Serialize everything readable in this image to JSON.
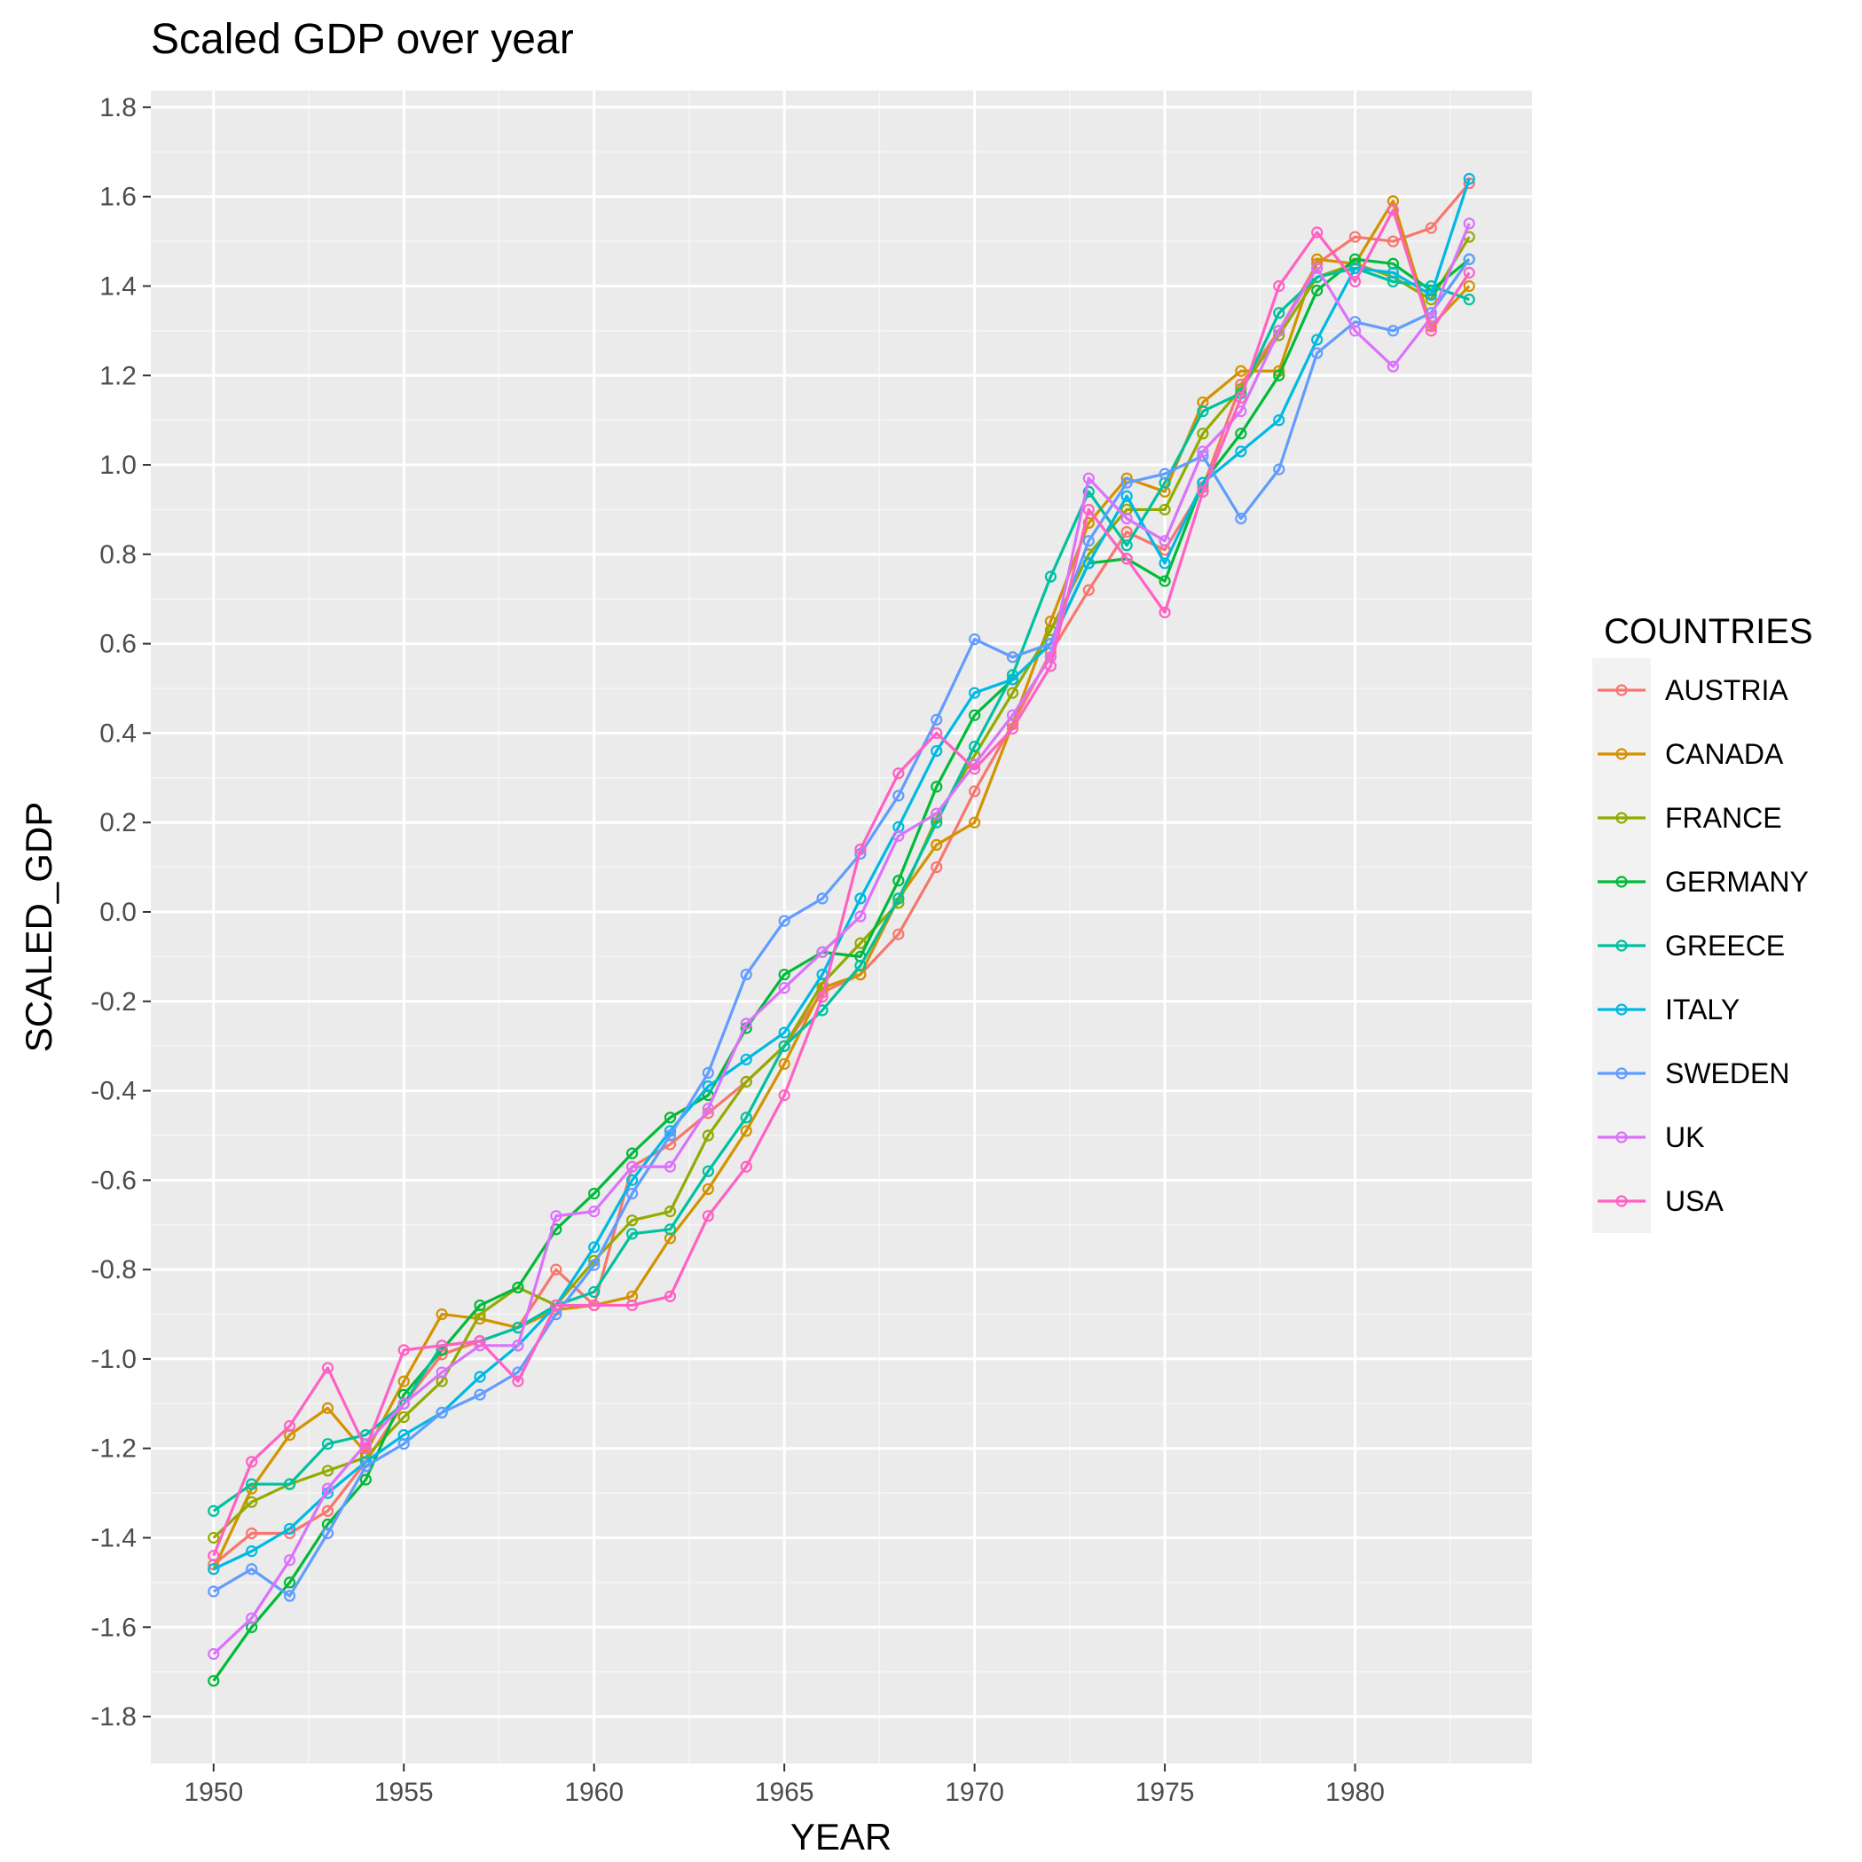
{
  "chart_data": {
    "type": "line",
    "title": "Scaled GDP over year",
    "xlabel": "YEAR",
    "ylabel": "SCALED_GDP",
    "xlim": [
      1948.35,
      1984.65
    ],
    "ylim": [
      -1.905,
      1.8375
    ],
    "x_ticks": [
      1950,
      1955,
      1960,
      1965,
      1970,
      1975,
      1980
    ],
    "x_tick_labels": [
      "1950",
      "1955",
      "1960",
      "1965",
      "1970",
      "1975",
      "1980"
    ],
    "y_ticks": [
      -1.8,
      -1.6,
      -1.4,
      -1.2,
      -1.0,
      -0.8,
      -0.6,
      -0.4,
      -0.2,
      0.0,
      0.2,
      0.4,
      0.6,
      0.8,
      1.0,
      1.2,
      1.4,
      1.6,
      1.8
    ],
    "y_tick_labels": [
      "-1.8",
      "-1.6",
      "-1.4",
      "-1.2",
      "-1.0",
      "-0.8",
      "-0.6",
      "-0.4",
      "-0.2",
      "0.0",
      "0.2",
      "0.4",
      "0.6",
      "0.8",
      "1.0",
      "1.2",
      "1.4",
      "1.6",
      "1.8"
    ],
    "grid": true,
    "legend_title": "COUNTRIES",
    "legend_position": "right",
    "x": [
      1950,
      1951,
      1952,
      1953,
      1954,
      1955,
      1956,
      1957,
      1958,
      1959,
      1960,
      1961,
      1962,
      1963,
      1964,
      1965,
      1966,
      1967,
      1968,
      1969,
      1970,
      1971,
      1972,
      1973,
      1974,
      1975,
      1976,
      1977,
      1978,
      1979,
      1980,
      1981,
      1982,
      1983
    ],
    "series": [
      {
        "name": "AUSTRIA",
        "color": "#F8766D",
        "values": [
          -1.46,
          -1.39,
          -1.39,
          -1.34,
          -1.23,
          -1.1,
          -0.99,
          -0.96,
          -0.93,
          -0.8,
          -0.88,
          -0.57,
          -0.52,
          -0.45,
          -0.38,
          -0.3,
          -0.18,
          -0.14,
          -0.05,
          0.1,
          0.27,
          0.42,
          0.58,
          0.72,
          0.85,
          0.81,
          0.95,
          1.18,
          1.3,
          1.45,
          1.51,
          1.5,
          1.53,
          1.63
        ]
      },
      {
        "name": "CANADA",
        "color": "#D39200",
        "values": [
          -1.47,
          -1.29,
          -1.17,
          -1.11,
          -1.21,
          -1.05,
          -0.9,
          -0.91,
          -0.93,
          -0.89,
          -0.88,
          -0.86,
          -0.73,
          -0.62,
          -0.49,
          -0.34,
          -0.17,
          -0.14,
          0.03,
          0.15,
          0.2,
          0.42,
          0.65,
          0.87,
          0.97,
          0.94,
          1.14,
          1.21,
          1.21,
          1.46,
          1.45,
          1.59,
          1.31,
          1.4
        ]
      },
      {
        "name": "FRANCE",
        "color": "#93AA00",
        "values": [
          -1.4,
          -1.32,
          -1.28,
          -1.25,
          -1.22,
          -1.13,
          -1.05,
          -0.9,
          -0.84,
          -0.88,
          -0.78,
          -0.69,
          -0.67,
          -0.5,
          -0.38,
          -0.3,
          -0.16,
          -0.07,
          0.02,
          0.21,
          0.35,
          0.49,
          0.63,
          0.8,
          0.9,
          0.9,
          1.07,
          1.17,
          1.29,
          1.42,
          1.45,
          1.42,
          1.37,
          1.51
        ]
      },
      {
        "name": "GERMANY",
        "color": "#00BA38",
        "values": [
          -1.72,
          -1.6,
          -1.5,
          -1.37,
          -1.27,
          -1.08,
          -0.98,
          -0.88,
          -0.84,
          -0.71,
          -0.63,
          -0.54,
          -0.46,
          -0.41,
          -0.26,
          -0.14,
          -0.09,
          -0.1,
          0.07,
          0.28,
          0.44,
          0.52,
          0.6,
          0.78,
          0.79,
          0.74,
          0.96,
          1.07,
          1.2,
          1.39,
          1.46,
          1.45,
          1.39,
          1.46
        ]
      },
      {
        "name": "GREECE",
        "color": "#00C19F",
        "values": [
          -1.34,
          -1.28,
          -1.28,
          -1.19,
          -1.17,
          -1.1,
          -0.97,
          -0.96,
          -0.93,
          -0.88,
          -0.85,
          -0.72,
          -0.71,
          -0.58,
          -0.46,
          -0.3,
          -0.22,
          -0.12,
          0.03,
          0.2,
          0.37,
          0.53,
          0.75,
          0.94,
          0.82,
          0.96,
          1.12,
          1.16,
          1.34,
          1.42,
          1.44,
          1.41,
          1.4,
          1.37
        ]
      },
      {
        "name": "ITALY",
        "color": "#00B9E3",
        "values": [
          -1.47,
          -1.43,
          -1.38,
          -1.3,
          -1.23,
          -1.17,
          -1.12,
          -1.04,
          -0.97,
          -0.88,
          -0.75,
          -0.6,
          -0.49,
          -0.39,
          -0.33,
          -0.27,
          -0.14,
          0.03,
          0.19,
          0.36,
          0.49,
          0.52,
          0.6,
          0.78,
          0.93,
          0.78,
          0.96,
          1.03,
          1.1,
          1.28,
          1.44,
          1.43,
          1.38,
          1.64
        ]
      },
      {
        "name": "SWEDEN",
        "color": "#619CFF",
        "values": [
          -1.52,
          -1.47,
          -1.53,
          -1.39,
          -1.24,
          -1.19,
          -1.12,
          -1.08,
          -1.03,
          -0.9,
          -0.79,
          -0.63,
          -0.5,
          -0.36,
          -0.14,
          -0.02,
          0.03,
          0.13,
          0.26,
          0.43,
          0.61,
          0.57,
          0.6,
          0.83,
          0.96,
          0.98,
          1.02,
          0.88,
          0.99,
          1.25,
          1.32,
          1.3,
          1.34,
          1.46
        ]
      },
      {
        "name": "UK",
        "color": "#DB72FB",
        "values": [
          -1.66,
          -1.58,
          -1.45,
          -1.29,
          -1.19,
          -1.1,
          -1.03,
          -0.97,
          -0.97,
          -0.68,
          -0.67,
          -0.57,
          -0.57,
          -0.44,
          -0.25,
          -0.17,
          -0.09,
          -0.01,
          0.17,
          0.22,
          0.33,
          0.44,
          0.57,
          0.97,
          0.88,
          0.83,
          1.03,
          1.12,
          1.3,
          1.44,
          1.3,
          1.22,
          1.33,
          1.54
        ]
      },
      {
        "name": "USA",
        "color": "#FF61C3",
        "values": [
          -1.44,
          -1.23,
          -1.15,
          -1.02,
          -1.2,
          -0.98,
          -0.97,
          -0.96,
          -1.05,
          -0.88,
          -0.88,
          -0.88,
          -0.86,
          -0.68,
          -0.57,
          -0.41,
          -0.19,
          0.14,
          0.31,
          0.4,
          0.32,
          0.41,
          0.55,
          0.9,
          0.79,
          0.67,
          0.94,
          1.15,
          1.4,
          1.52,
          1.41,
          1.57,
          1.3,
          1.43
        ]
      }
    ]
  }
}
